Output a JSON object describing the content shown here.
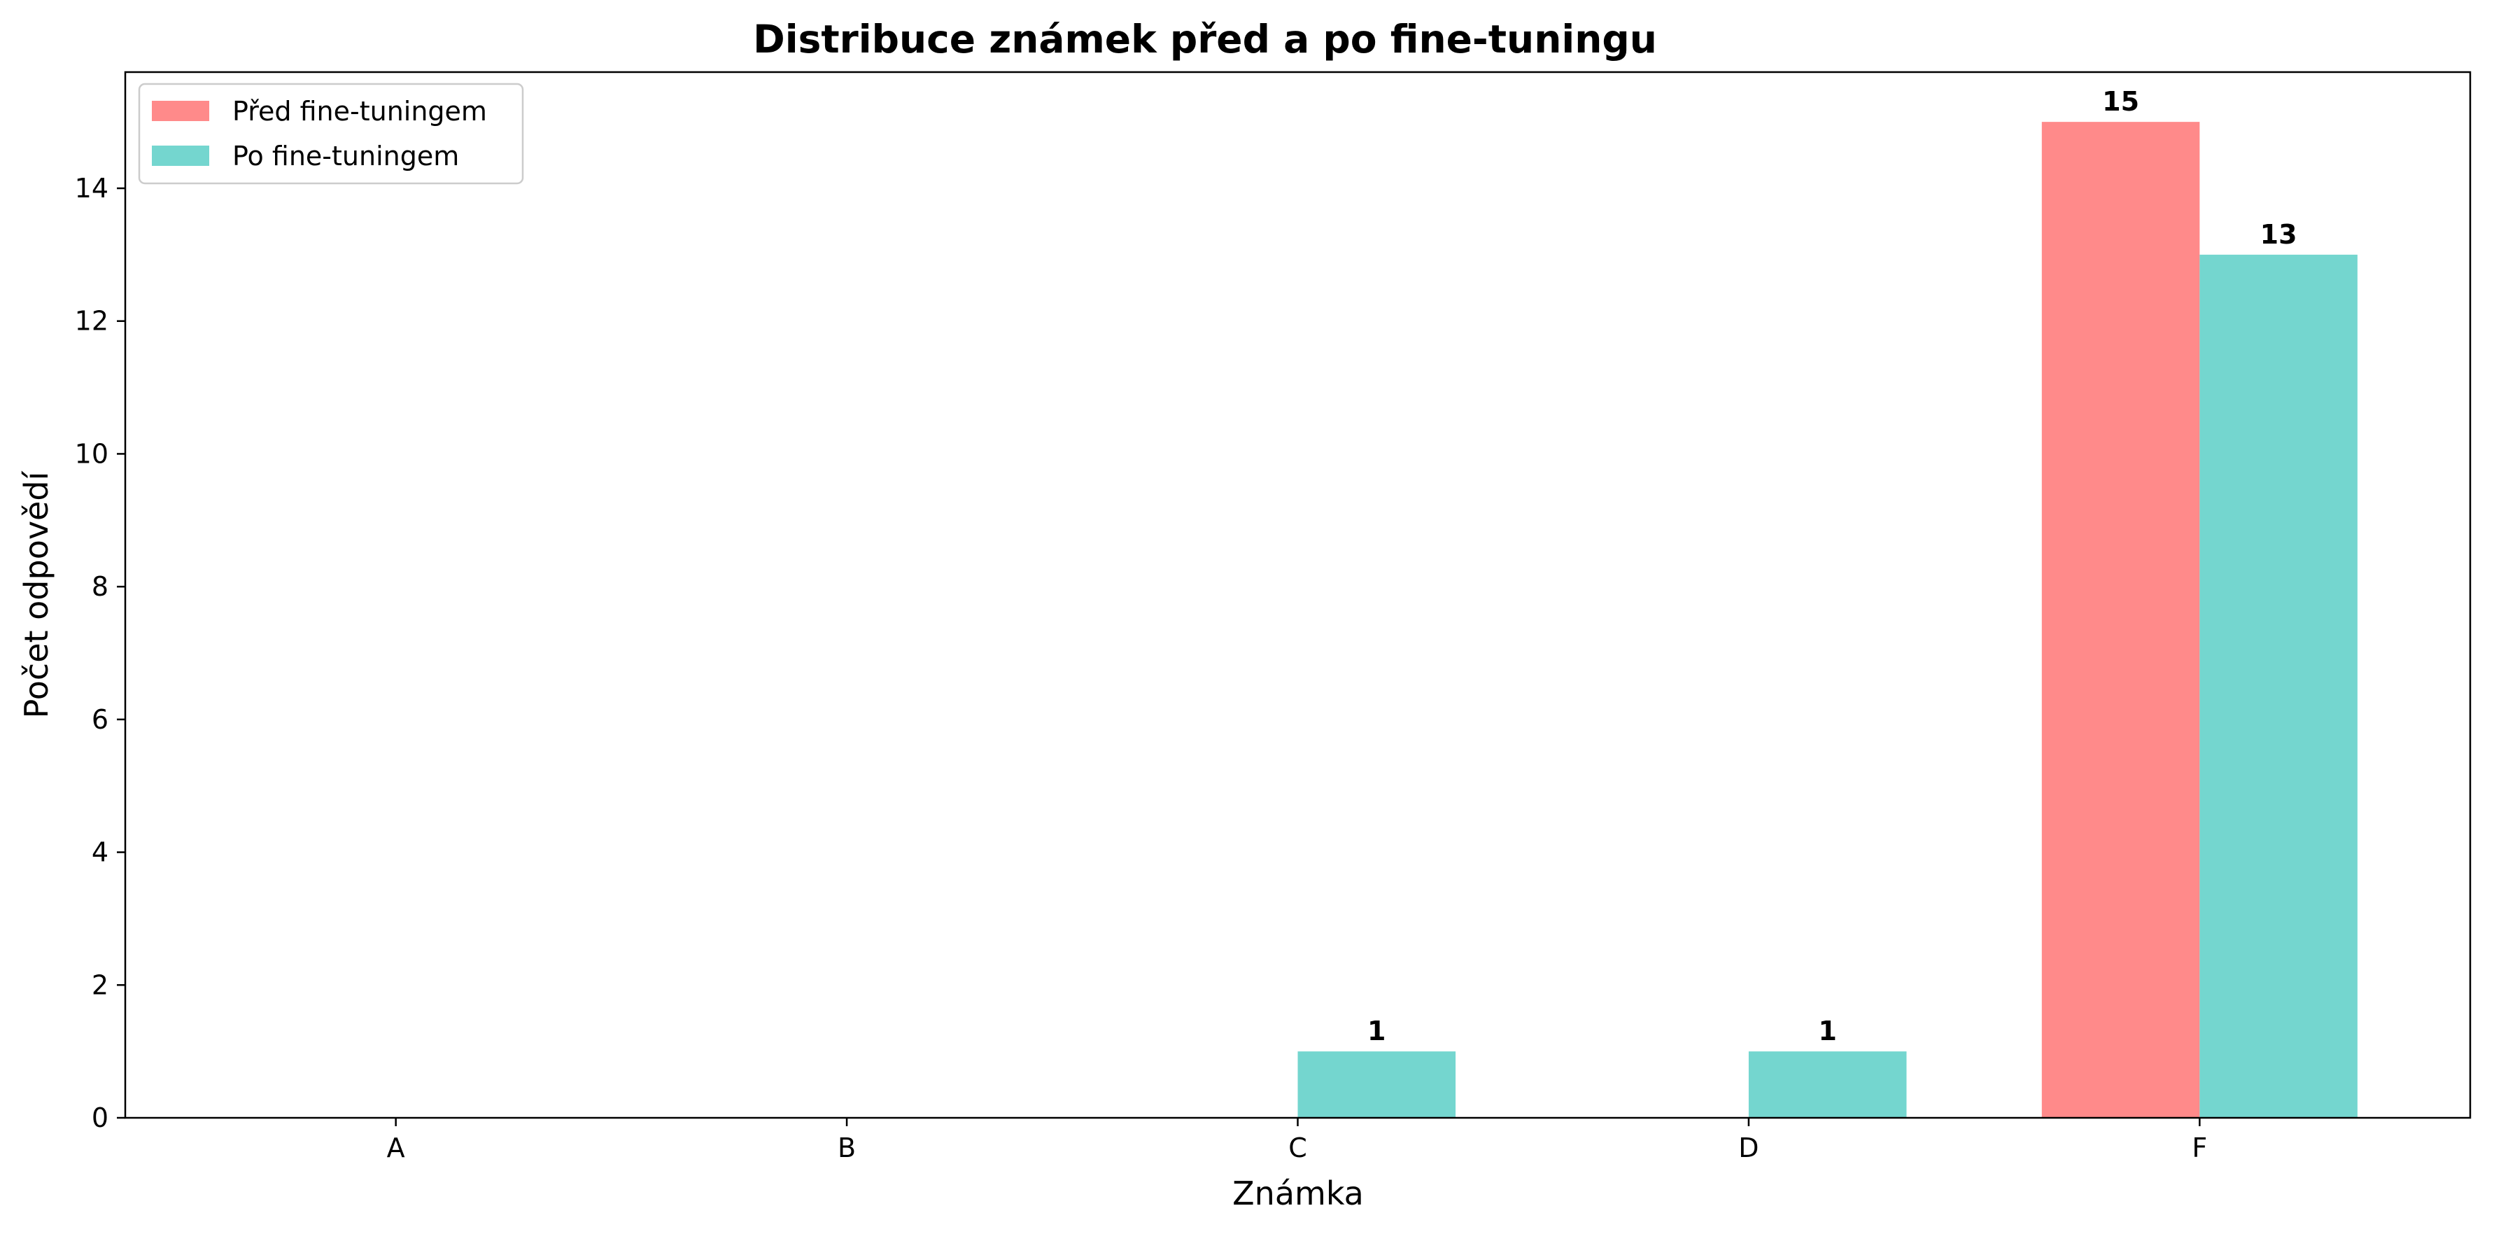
{
  "chart_data": {
    "type": "bar",
    "title": "Distribuce známek před a po fine-tuningu",
    "xlabel": "Známka",
    "ylabel": "Počet odpovědí",
    "categories": [
      "A",
      "B",
      "C",
      "D",
      "F"
    ],
    "series": [
      {
        "name": "Před fine-tuningem",
        "color": "#ff8a8a",
        "values": [
          0,
          0,
          0,
          0,
          15
        ]
      },
      {
        "name": "Po fine-tuningem",
        "color": "#74d6cf",
        "values": [
          0,
          0,
          1,
          1,
          13
        ]
      }
    ],
    "ylim": [
      0,
      15.75
    ],
    "yticks": [
      0,
      2,
      4,
      6,
      8,
      10,
      12,
      14
    ],
    "grid": false,
    "legend": "top-left",
    "show_value_labels_when_nonzero": true
  }
}
